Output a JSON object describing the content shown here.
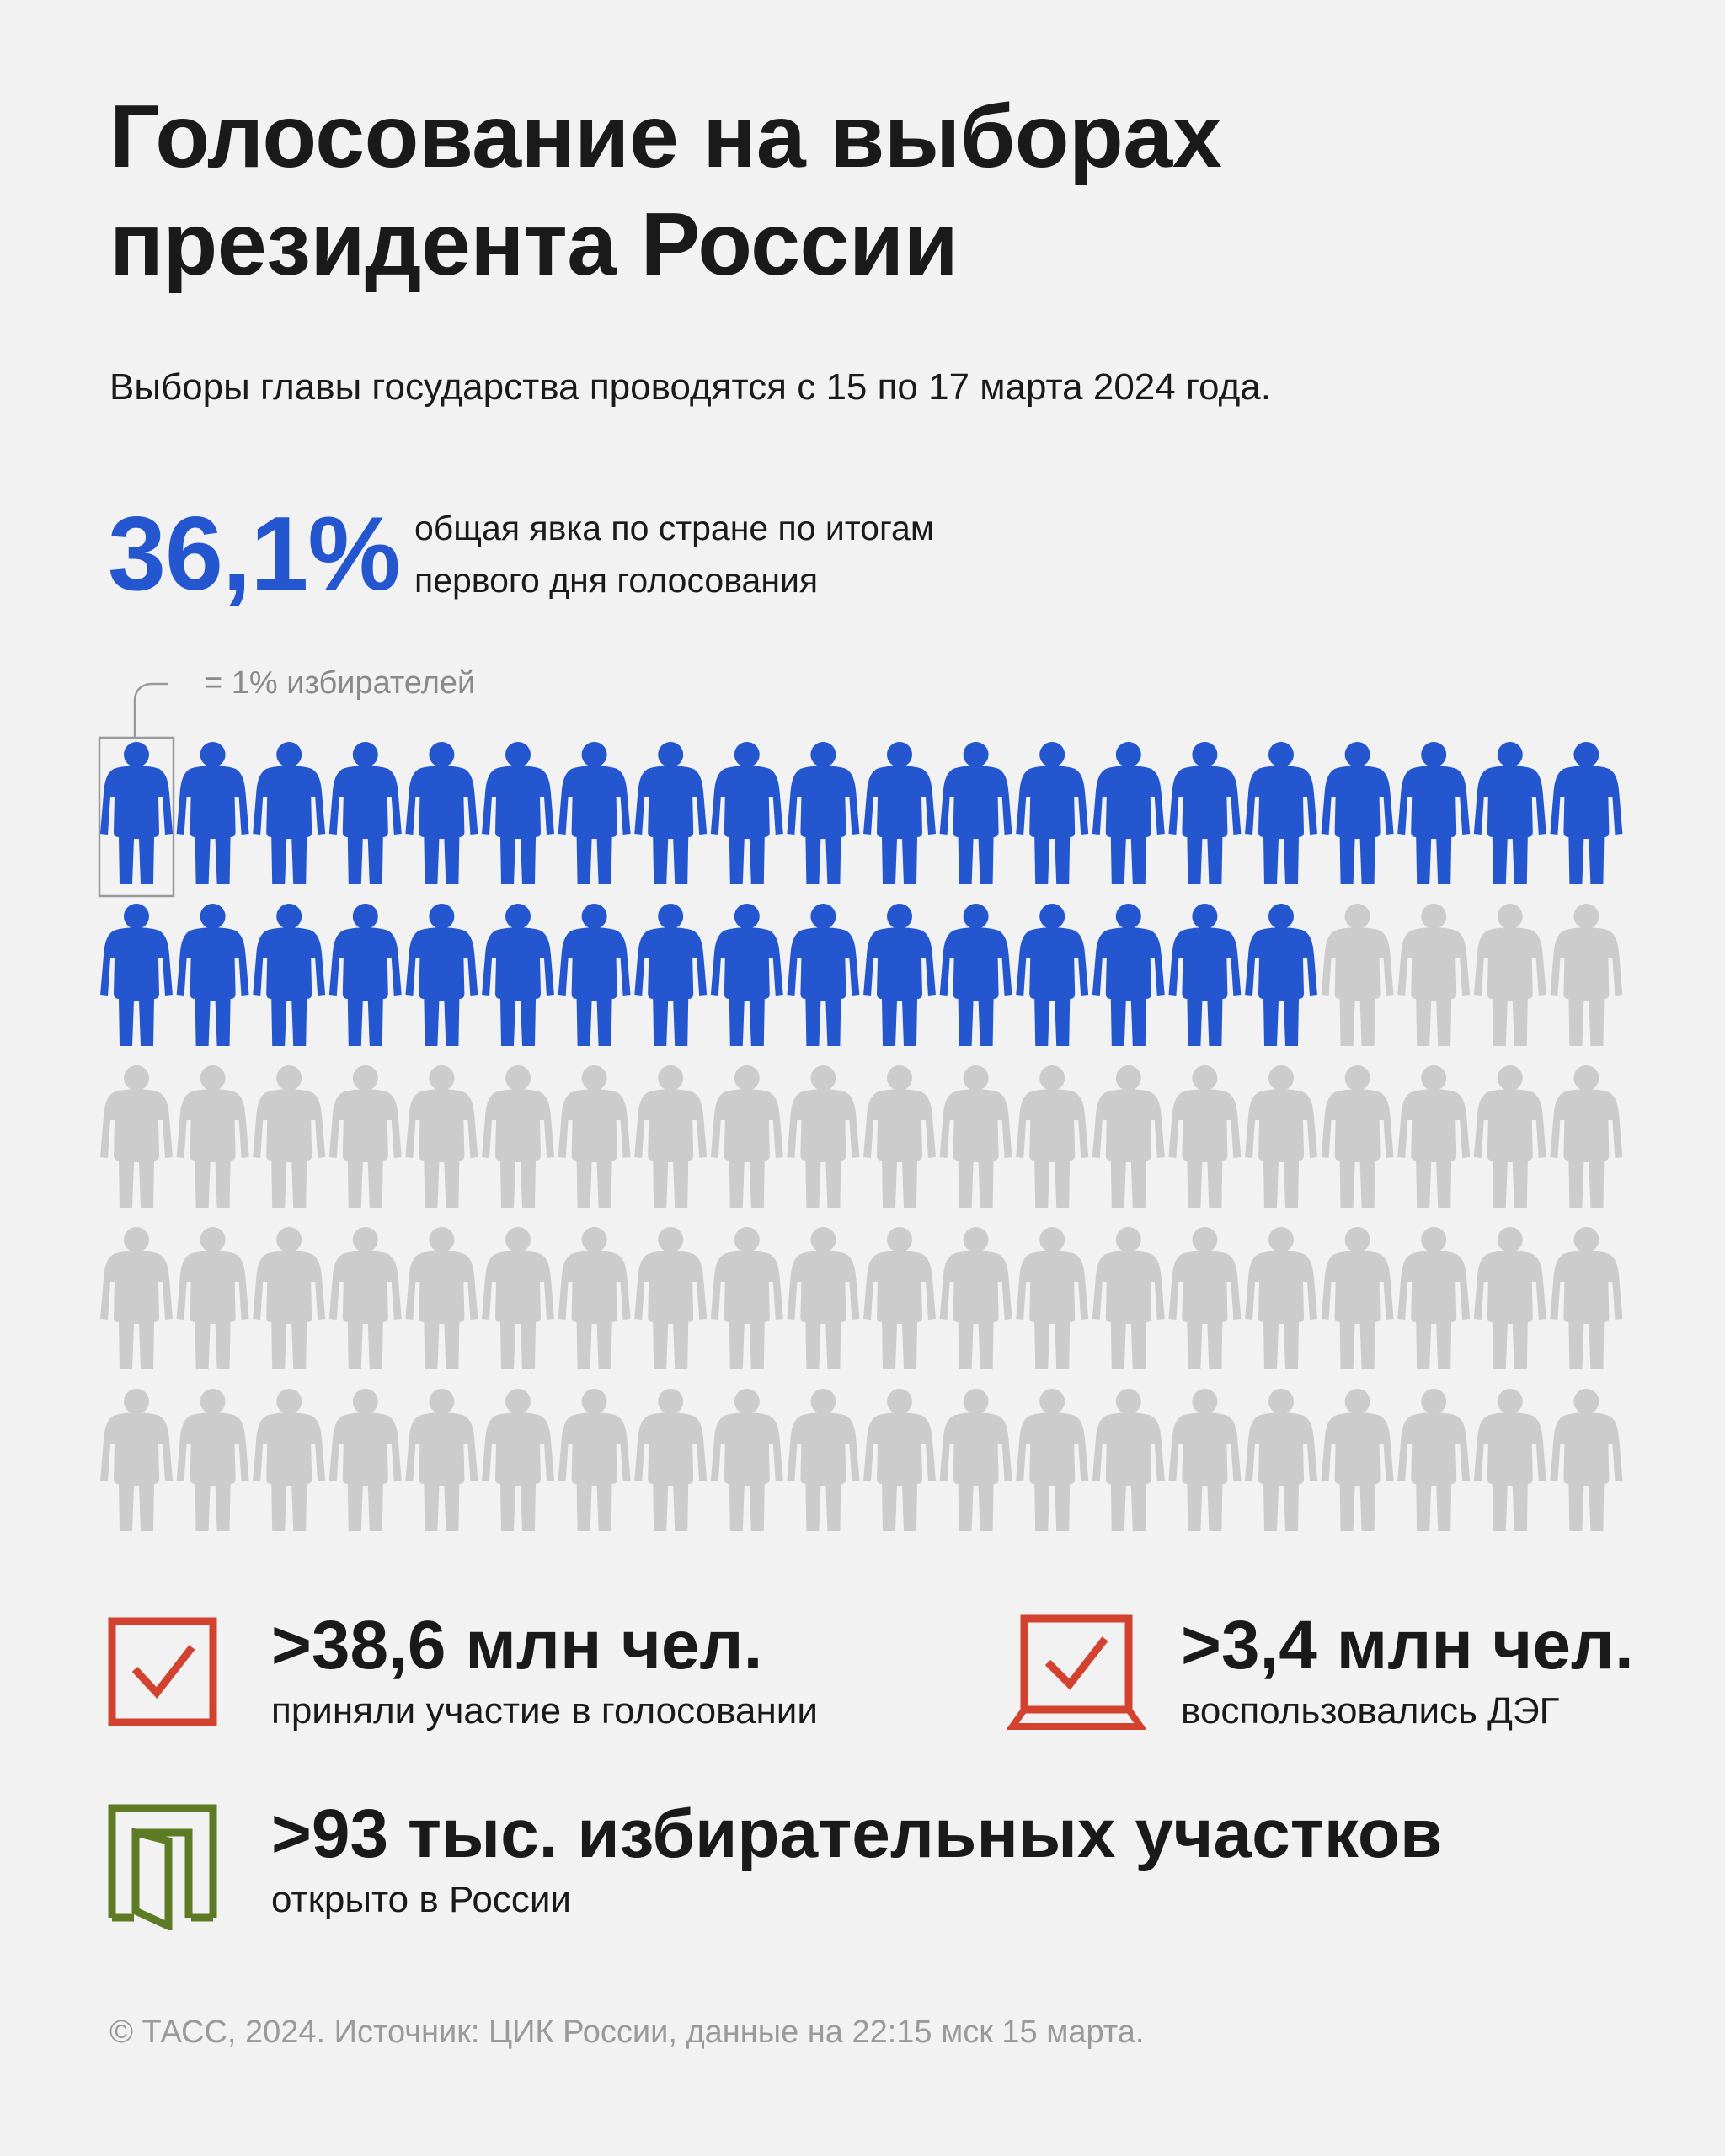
{
  "header": {
    "title_line1": "Голосование на выборах",
    "title_line2": "президента России",
    "subtitle": "Выборы главы государства проводятся с 15 по 17 марта 2024 года."
  },
  "turnout": {
    "value": "36,1%",
    "description_line1": "общая явка по стране по итогам",
    "description_line2": "первого дня голосования"
  },
  "chart_data": {
    "type": "pictogram",
    "legend_text": "= 1% избирателей",
    "total_icons": 100,
    "filled_icons": 36,
    "filled_color": "#2456d0",
    "empty_color": "#cccccc",
    "icon": "person-icon"
  },
  "stats": [
    {
      "value": ">38,6 млн чел.",
      "label": "приняли участие в голосовании",
      "icon": "ballot-check-icon",
      "color": "#d2422f"
    },
    {
      "value": ">3,4 млн чел.",
      "label": "воспользовались ДЭГ",
      "icon": "laptop-check-icon",
      "color": "#d2422f"
    },
    {
      "value": ">93 тыс. избирательных участков",
      "label": "открыто в России",
      "icon": "door-open-icon",
      "color": "#5d7a25"
    }
  ],
  "footer": "© ТАСС, 2024. Источник: ЦИК России, данные на 22:15 мск 15 марта."
}
